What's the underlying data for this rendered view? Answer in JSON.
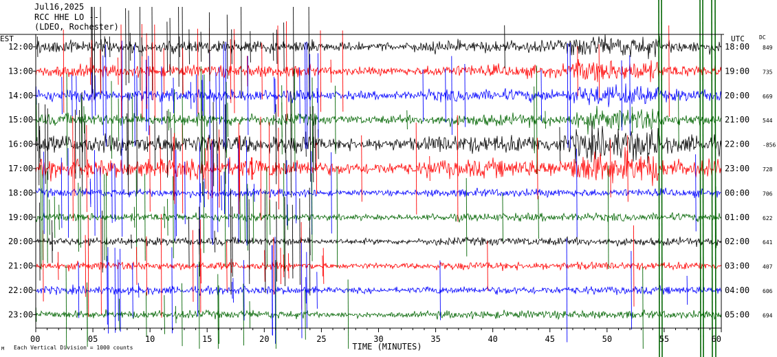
{
  "header": {
    "date": "Jul16,2025",
    "station": "RCC HHE LO --",
    "institution": "(LDEO, Rochester)"
  },
  "footer": {
    "note": "Each Vertical Division = 1000 counts",
    "mark": "M"
  },
  "chart_data": {
    "type": "line",
    "subtype": "helicorder",
    "xlabel": "TIME (MINUTES)",
    "xlim": [
      0,
      60
    ],
    "x_ticks": [
      0,
      5,
      10,
      15,
      20,
      25,
      30,
      35,
      40,
      45,
      50,
      55,
      60
    ],
    "x_tick_labels": [
      "00",
      "05",
      "10",
      "15",
      "20",
      "25",
      "30",
      "35",
      "40",
      "45",
      "50",
      "55",
      "60"
    ],
    "left_axis_label": "EST",
    "right_axis_label": "UTC",
    "dc_label": "DC",
    "trace_colors": [
      "#000000",
      "#ff0000",
      "#0000ff",
      "#006400"
    ],
    "rows": [
      {
        "est": "12:00",
        "utc": "18:00",
        "dc": "849"
      },
      {
        "est": "13:00",
        "utc": "19:00",
        "dc": "735"
      },
      {
        "est": "14:00",
        "utc": "20:00",
        "dc": "669"
      },
      {
        "est": "15:00",
        "utc": "21:00",
        "dc": "544"
      },
      {
        "est": "16:00",
        "utc": "22:00",
        "dc": "-856"
      },
      {
        "est": "17:00",
        "utc": "23:00",
        "dc": "728"
      },
      {
        "est": "18:00",
        "utc": "00:00",
        "dc": "706"
      },
      {
        "est": "19:00",
        "utc": "01:00",
        "dc": "622"
      },
      {
        "est": "20:00",
        "utc": "02:00",
        "dc": "641"
      },
      {
        "est": "21:00",
        "utc": "03:00",
        "dc": "407"
      },
      {
        "est": "22:00",
        "utc": "04:00",
        "dc": "606"
      },
      {
        "est": "23:00",
        "utc": "05:00",
        "dc": "694"
      }
    ]
  }
}
